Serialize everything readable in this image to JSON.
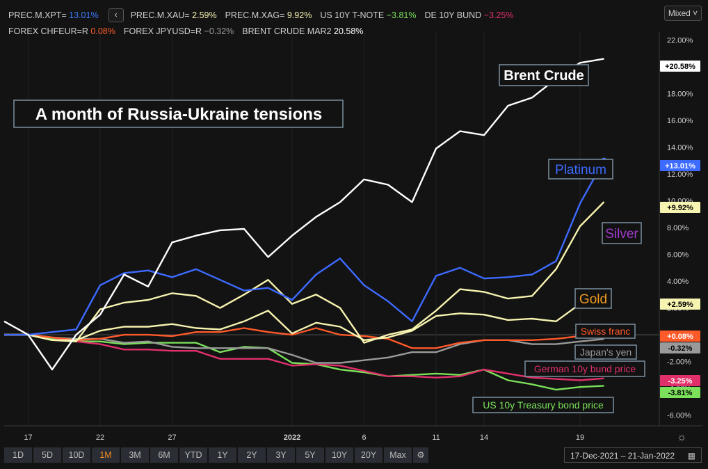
{
  "legend_row1": [
    {
      "name": "PREC.M.XPT=",
      "value": "13.01%",
      "color": "#3d7bff"
    },
    {
      "name": "PREC.M.XAU=",
      "value": "2.59%",
      "color": "#f7f3b0"
    },
    {
      "name": "PREC.M.XAG=",
      "value": "9.92%",
      "color": "#f7f3b0"
    },
    {
      "name": "US 10Y T-NOTE",
      "value": "−3.81%",
      "color": "#7be05a"
    },
    {
      "name": "DE 10Y BUND",
      "value": "−3.25%",
      "color": "#e0306a"
    }
  ],
  "legend_row2": [
    {
      "name": "FOREX CHFEUR=R",
      "value": "0.08%",
      "color": "#ff5a2a"
    },
    {
      "name": "FOREX JPYUSD=R",
      "value": "−0.32%",
      "color": "#9a9a9a"
    },
    {
      "name": "BRENT CRUDE MAR2",
      "value": "20.58%",
      "color": "#ffffff"
    }
  ],
  "collapse_glyph": "‹",
  "scale_mode": "Mixed ˅",
  "time_ranges": [
    "1D",
    "5D",
    "10D",
    "1M",
    "3M",
    "6M",
    "YTD",
    "1Y",
    "2Y",
    "3Y",
    "5Y",
    "10Y",
    "20Y",
    "Max"
  ],
  "active_range": "1M",
  "date_range": "17-Dec-2021  –  21-Jan-2022",
  "colors": {
    "accent": "#f08a24",
    "background": "#131313",
    "grid": "#2a2a2a"
  },
  "chart_data": {
    "type": "line",
    "title": "A month of Russia-Ukraine tensions",
    "x_ticks": [
      "17",
      "22",
      "27",
      "2022",
      "6",
      "11",
      "14",
      "19"
    ],
    "y_ticks": [
      "22.00%",
      "20.00%",
      "18.00%",
      "16.00%",
      "14.00%",
      "12.00%",
      "10.00%",
      "8.00%",
      "6.00%",
      "4.00%",
      "2.00%",
      "0.00%",
      "-2.00%",
      "-4.00%",
      "-6.00%"
    ],
    "ylim": [
      -6.8,
      22.6
    ],
    "x": [
      "16-Dec",
      "17-Dec",
      "20-Dec",
      "21-Dec",
      "22-Dec",
      "23-Dec",
      "24-Dec",
      "27-Dec",
      "28-Dec",
      "29-Dec",
      "30-Dec",
      "31-Dec",
      "03-Jan",
      "04-Jan",
      "05-Jan",
      "06-Jan",
      "07-Jan",
      "10-Jan",
      "11-Jan",
      "12-Jan",
      "13-Jan",
      "14-Jan",
      "17-Jan",
      "18-Jan",
      "19-Jan",
      "20-Jan",
      "21-Jan"
    ],
    "series": [
      {
        "name": "Brent Crude",
        "color": "#ffffff",
        "badge": "+20.58%",
        "badge_bg": "#ffffff",
        "badge_fg": "#000000",
        "values": [
          1.0,
          0.0,
          -2.6,
          0.0,
          1.5,
          4.5,
          3.6,
          6.9,
          7.4,
          7.8,
          7.9,
          5.8,
          7.4,
          8.8,
          9.9,
          11.6,
          11.2,
          9.9,
          13.9,
          15.2,
          14.9,
          17.1,
          17.7,
          19.1,
          20.3,
          20.6,
          20.58
        ]
      },
      {
        "name": "Platinum",
        "color": "#3d6bff",
        "badge": "+13.01%",
        "badge_bg": "#3d6bff",
        "badge_fg": "#ffffff",
        "values": [
          0.0,
          0.0,
          0.2,
          0.4,
          3.7,
          4.6,
          4.8,
          4.3,
          4.9,
          4.1,
          3.3,
          3.5,
          2.6,
          4.5,
          5.7,
          3.7,
          2.5,
          1.0,
          4.4,
          5.0,
          4.2,
          4.3,
          4.5,
          5.5,
          9.8,
          13.01,
          13.01
        ]
      },
      {
        "name": "Silver",
        "color": "#f7f3b0",
        "badge": "+9.92%",
        "badge_bg": "#f7f3b0",
        "badge_fg": "#000000",
        "values": [
          0.0,
          0.0,
          -0.4,
          -0.5,
          1.9,
          2.4,
          2.6,
          3.1,
          2.9,
          2.0,
          3.0,
          4.1,
          2.3,
          3.0,
          2.0,
          -0.6,
          0.0,
          0.4,
          1.8,
          3.4,
          3.2,
          2.7,
          2.9,
          4.9,
          8.1,
          9.92,
          9.92
        ]
      },
      {
        "name": "Gold",
        "color": "#f7f3b0",
        "badge": "+2.59%",
        "badge_bg": "#f7f3b0",
        "badge_fg": "#000000",
        "values": [
          0.0,
          0.0,
          -0.4,
          -0.4,
          0.3,
          0.6,
          0.6,
          0.8,
          0.5,
          0.4,
          1.0,
          1.8,
          0.1,
          0.9,
          0.6,
          -0.4,
          -0.2,
          0.3,
          1.4,
          1.6,
          1.5,
          1.1,
          1.2,
          1.0,
          2.3,
          2.59,
          2.59
        ]
      },
      {
        "name": "Swiss franc",
        "color": "#ff5a2a",
        "badge": "+0.08%",
        "badge_bg": "#ff5a2a",
        "badge_fg": "#ffffff",
        "values": [
          0.0,
          0.0,
          -0.2,
          -0.4,
          -0.3,
          0.0,
          0.0,
          -0.1,
          0.2,
          0.2,
          0.5,
          0.2,
          0.0,
          0.5,
          0.0,
          -0.1,
          -0.3,
          -1.0,
          -1.0,
          -0.6,
          -0.4,
          -0.4,
          -0.4,
          -0.3,
          -0.1,
          0.08,
          0.08
        ]
      },
      {
        "name": "Japan's yen",
        "color": "#9a9a9a",
        "badge": "-0.32%",
        "badge_bg": "#9a9a9a",
        "badge_fg": "#000000",
        "values": [
          0.0,
          0.0,
          -0.2,
          -0.3,
          -0.3,
          -0.6,
          -0.5,
          -0.9,
          -1.0,
          -1.0,
          -1.0,
          -1.0,
          -1.5,
          -2.1,
          -2.1,
          -1.9,
          -1.7,
          -1.3,
          -1.3,
          -0.7,
          -0.4,
          -0.4,
          -0.7,
          -0.7,
          -0.5,
          -0.32,
          -0.32
        ]
      },
      {
        "name": "German 10y bund price",
        "color": "#e0306a",
        "badge": "-3.25%",
        "badge_bg": "#e0306a",
        "badge_fg": "#ffffff",
        "values": [
          0.0,
          0.0,
          -0.2,
          -0.5,
          -0.7,
          -1.1,
          -1.1,
          -1.2,
          -1.2,
          -1.8,
          -1.8,
          -1.8,
          -2.3,
          -2.2,
          -2.3,
          -2.7,
          -3.1,
          -3.1,
          -3.2,
          -3.1,
          -2.6,
          -2.9,
          -3.2,
          -3.3,
          -3.4,
          -3.25,
          -3.25
        ]
      },
      {
        "name": "US 10y Treasury bond price",
        "color": "#7be05a",
        "badge": "-3.81%",
        "badge_bg": "#7be05a",
        "badge_fg": "#000000",
        "values": [
          0.0,
          0.0,
          -0.3,
          -0.5,
          -0.5,
          -0.7,
          -0.6,
          -0.6,
          -0.6,
          -1.3,
          -0.9,
          -1.0,
          -2.1,
          -2.2,
          -2.6,
          -2.8,
          -3.1,
          -3.0,
          -2.9,
          -3.0,
          -2.6,
          -3.4,
          -3.7,
          -4.1,
          -3.9,
          -3.81,
          -3.81
        ]
      }
    ],
    "labels": [
      {
        "text": "Brent Crude",
        "color": "#ffffff",
        "bold": true
      },
      {
        "text": "Platinum",
        "color": "#3d6bff",
        "bold": false
      },
      {
        "text": "Silver",
        "color": "#a23bd0",
        "bold": false
      },
      {
        "text": "Gold",
        "color": "#f39a1e",
        "bold": false
      },
      {
        "text": "Swiss franc",
        "color": "#ff5a2a",
        "bold": false
      },
      {
        "text": "Japan's yen",
        "color": "#9a9a9a",
        "bold": false
      },
      {
        "text": "German 10y bund price",
        "color": "#e0306a",
        "bold": false
      },
      {
        "text": "US 10y Treasury bond price",
        "color": "#7be05a",
        "bold": false
      }
    ]
  }
}
